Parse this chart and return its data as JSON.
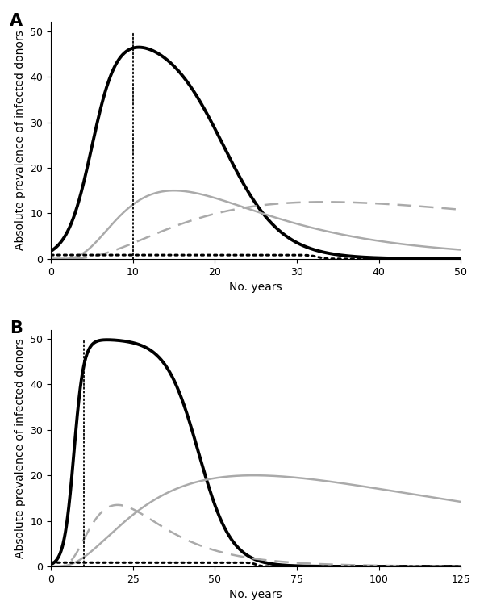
{
  "panel_A": {
    "label": "A",
    "xlim": [
      0,
      50
    ],
    "xticks": [
      0,
      10,
      20,
      30,
      40,
      50
    ],
    "ylim": [
      0,
      52
    ],
    "yticks": [
      0,
      10,
      20,
      30,
      40,
      50
    ],
    "vline_x": 10
  },
  "panel_B": {
    "label": "B",
    "xlim": [
      0,
      125
    ],
    "xticks": [
      0,
      25,
      50,
      75,
      100,
      125
    ],
    "ylim": [
      0,
      52
    ],
    "yticks": [
      0,
      10,
      20,
      30,
      40,
      50
    ],
    "vline_x": 10
  },
  "colors": {
    "black": "#000000",
    "gray": "#aaaaaa"
  },
  "ylabel": "Absolute prevalence of infected donors",
  "xlabel": "No. years",
  "lw_thick": 2.8,
  "lw_thin": 1.8,
  "lw_dotted": 2.2
}
